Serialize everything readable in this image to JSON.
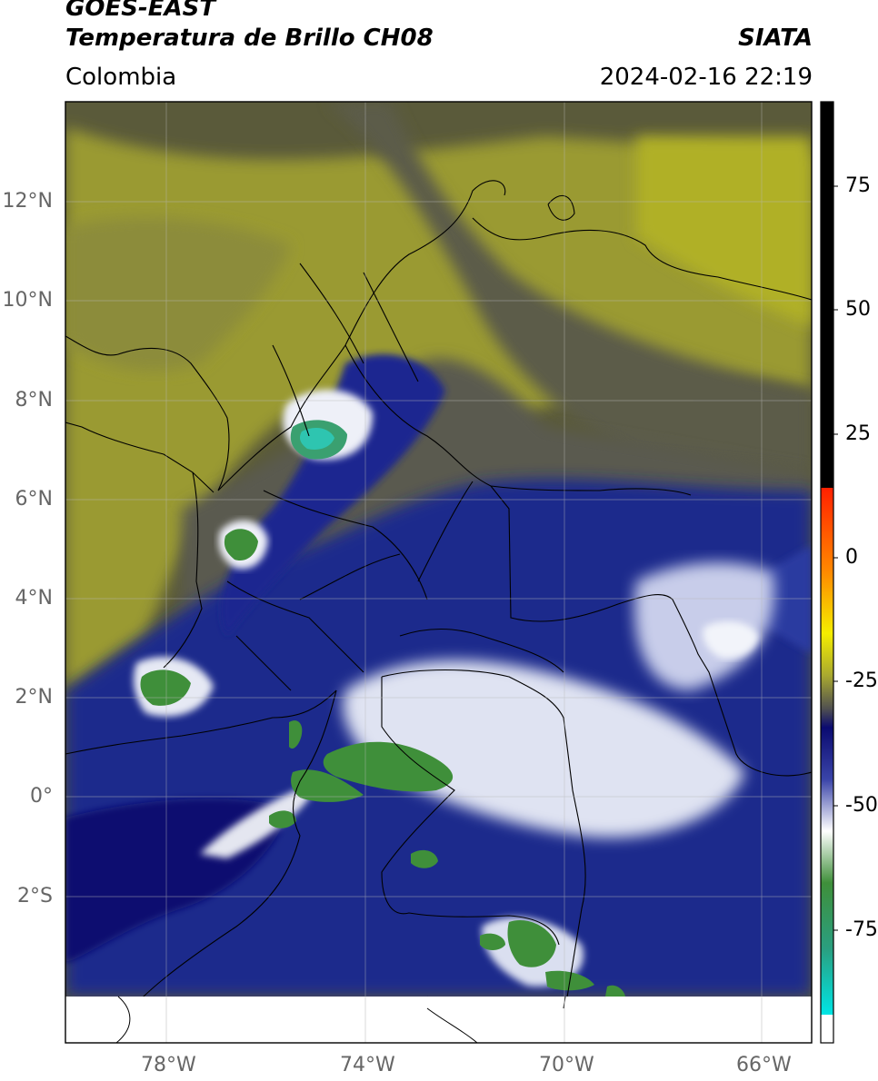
{
  "header": {
    "satellite": "GOES-EAST",
    "product": "Temperatura de Brillo CH08",
    "organization": "SIATA",
    "region": "Colombia",
    "timestamp": "2024-02-16 22:19"
  },
  "map": {
    "lon_range": [
      -80,
      -65
    ],
    "lat_range": [
      -5,
      14
    ],
    "lat_ticks": [
      {
        "value": 12,
        "label": "12°N"
      },
      {
        "value": 10,
        "label": "10°N"
      },
      {
        "value": 8,
        "label": "8°N"
      },
      {
        "value": 6,
        "label": "6°N"
      },
      {
        "value": 4,
        "label": "4°N"
      },
      {
        "value": 2,
        "label": "2°N"
      },
      {
        "value": 0,
        "label": "0°"
      },
      {
        "value": -2,
        "label": "2°S"
      }
    ],
    "lon_ticks": [
      {
        "value": -78,
        "label": "78°W"
      },
      {
        "value": -74,
        "label": "74°W"
      },
      {
        "value": -70,
        "label": "70°W"
      },
      {
        "value": -66,
        "label": "66°W"
      }
    ]
  },
  "colorbar": {
    "range": [
      -95,
      90
    ],
    "ticks": [
      {
        "value": 75,
        "label": "75"
      },
      {
        "value": 50,
        "label": "50"
      },
      {
        "value": 25,
        "label": "25"
      },
      {
        "value": 0,
        "label": "0"
      },
      {
        "value": -25,
        "label": "-25"
      },
      {
        "value": -50,
        "label": "-50"
      },
      {
        "value": -75,
        "label": "-75"
      }
    ]
  },
  "colors": {
    "dry_olive": "#9a9a30",
    "dark_gray": "#5a5a5a",
    "cold_blue": "#1c2a8c",
    "deep_navy": "#0b1070",
    "very_cold_white": "#eef0f8",
    "coldest_green": "#3f8f3a",
    "teal": "#2ec5b0"
  }
}
